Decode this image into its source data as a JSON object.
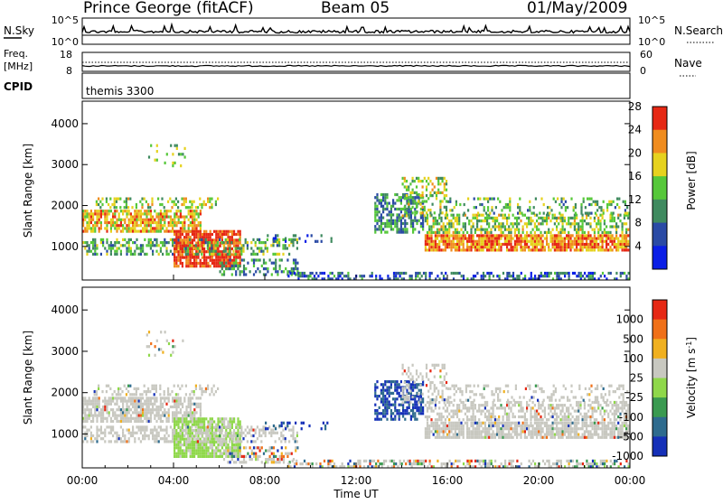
{
  "header": {
    "station": "Prince George (fitACF)",
    "beam": "Beam 05",
    "date": "01/May/2009"
  },
  "nsky_panel": {
    "left_label": "N.Sky",
    "left_ticks": [
      "10^5",
      "10^0"
    ],
    "right_label": "N.Search",
    "right_ticks": [
      "10^5",
      "10^0"
    ]
  },
  "freq_panel": {
    "left_label_1": "Freq.",
    "left_label_2": "[MHz]",
    "left_ticks": [
      "18",
      "8"
    ],
    "right_label": "Nave",
    "right_ticks": [
      "60",
      "0"
    ]
  },
  "cpid_panel": {
    "label": "CPID",
    "value": "themis 3300"
  },
  "chart_data": [
    {
      "type": "heatmap",
      "name": "Power",
      "ylabel": "Slant Range [km]",
      "xlabel": "",
      "ylim": [
        180,
        4550
      ],
      "yticks": [
        "1000",
        "2000",
        "3000",
        "4000"
      ],
      "xlim": [
        "00:00",
        "24:00"
      ],
      "colorbar_label": "Power [dB]",
      "colorbar_ticks": [
        "4",
        "8",
        "12",
        "16",
        "20",
        "24",
        "28"
      ],
      "colorbar_colors": [
        "#0a1ee6",
        "#2a4aa5",
        "#3f8a5f",
        "#56c83a",
        "#e6d21e",
        "#f08c1e",
        "#e62814"
      ]
    },
    {
      "type": "heatmap",
      "name": "Velocity",
      "ylabel": "Slant Range [km]",
      "xlabel": "Time UT",
      "ylim": [
        180,
        4550
      ],
      "yticks": [
        "1000",
        "2000",
        "3000",
        "4000"
      ],
      "xticks": [
        "00:00",
        "04:00",
        "08:00",
        "12:00",
        "16:00",
        "20:00",
        "00:00"
      ],
      "colorbar_label": "Velocity [m s^-1]",
      "colorbar_label_prefix": "Velocity [m s",
      "colorbar_label_exp": "-1",
      "colorbar_label_suffix": "]",
      "colorbar_ticks": [
        "1000",
        "500",
        "100",
        "25",
        "-25",
        "-100",
        "-500",
        "-1000"
      ],
      "colorbar_colors": [
        "#1530b8",
        "#2e6b8e",
        "#3a9a50",
        "#8fd84a",
        "#c8c8c0",
        "#f0b020",
        "#f07018",
        "#e62814"
      ]
    }
  ]
}
